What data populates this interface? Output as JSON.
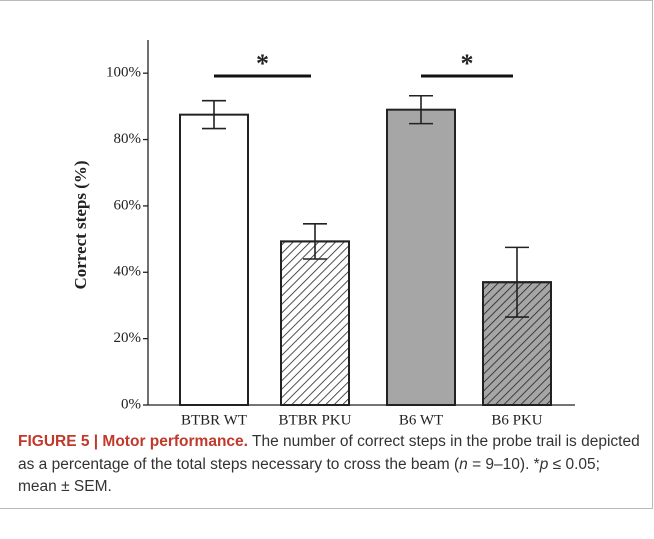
{
  "chart_data": {
    "type": "bar",
    "ylabel": "Correct steps (%)",
    "categories": [
      "BTBR WT",
      "BTBR PKU",
      "B6 WT",
      "B6 PKU"
    ],
    "values": [
      87.5,
      49.3,
      89,
      37
    ],
    "errors": [
      4.2,
      5.3,
      4.2,
      10.5
    ],
    "colors": [
      "#ffffff",
      "#ffffff",
      "#a6a6a6",
      "#a6a6a6"
    ],
    "hatch": [
      false,
      true,
      false,
      true
    ],
    "ylim": [
      0,
      110
    ],
    "yticks": [
      {
        "value": 0,
        "label": "0%"
      },
      {
        "value": 20,
        "label": "20%"
      },
      {
        "value": 40,
        "label": "40%"
      },
      {
        "value": 60,
        "label": "60%"
      },
      {
        "value": 80,
        "label": "80%"
      },
      {
        "value": 100,
        "label": "100%"
      }
    ],
    "annotations": [
      {
        "text": "*",
        "from": 0,
        "to": 1
      },
      {
        "text": "*",
        "from": 2,
        "to": 3
      }
    ]
  },
  "caption": {
    "label": "FIGURE 5 | Motor performance.",
    "parts": [
      " The number of correct steps in the probe trail is depicted as a percentage of the total steps necessary to cross the beam (",
      "n",
      " = 9–10). *",
      "p",
      " ≤ 0.05; mean ± SEM."
    ]
  }
}
